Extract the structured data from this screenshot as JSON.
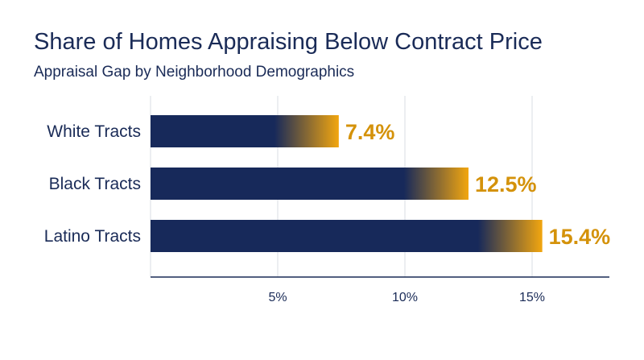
{
  "chart_data": {
    "type": "bar",
    "orientation": "horizontal",
    "title": "Share of Homes Appraising Below Contract Price",
    "subtitle": "Appraisal Gap by Neighborhood Demographics",
    "categories": [
      "White Tracts",
      "Black Tracts",
      "Latino Tracts"
    ],
    "values": [
      7.4,
      12.5,
      15.4
    ],
    "value_labels": [
      "7.4%",
      "12.5%",
      "15.4%"
    ],
    "xlim": [
      0,
      18
    ],
    "xticks": [
      5,
      10,
      15
    ],
    "xtick_labels": [
      "5%",
      "10%",
      "15%"
    ],
    "grid": "vertical",
    "legend": "none"
  },
  "colors": {
    "bar_start": "#17295a",
    "bar_end": "#f2a60f",
    "value_label": "#d4920a",
    "text": "#1a2b57",
    "grid": "#d9dce3",
    "axis": "#1a2b57"
  }
}
